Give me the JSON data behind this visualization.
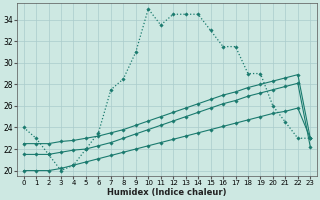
{
  "xlabel": "Humidex (Indice chaleur)",
  "background_color": "#cde8e2",
  "grid_color": "#aacccc",
  "line_color": "#1a7a6e",
  "xlim": [
    -0.5,
    23.5
  ],
  "ylim": [
    19.5,
    35.5
  ],
  "yticks": [
    20,
    22,
    24,
    26,
    28,
    30,
    32,
    34
  ],
  "xticks": [
    0,
    1,
    2,
    3,
    4,
    5,
    6,
    7,
    8,
    9,
    10,
    11,
    12,
    13,
    14,
    15,
    16,
    17,
    18,
    19,
    20,
    21,
    22,
    23
  ],
  "curve1_x": [
    0,
    1,
    2,
    3,
    4,
    5,
    6,
    7,
    8,
    9,
    10,
    11,
    12,
    13,
    14,
    15,
    16,
    17,
    18,
    19,
    20,
    21,
    22,
    23
  ],
  "curve1_y": [
    24,
    23,
    21.5,
    20,
    20.5,
    22,
    23.5,
    27.5,
    28.5,
    31,
    35,
    33.5,
    34.5,
    34.5,
    34.5,
    33,
    31.5,
    31.5,
    29,
    29,
    26,
    24.5,
    23,
    23
  ],
  "curve2_x": [
    0,
    1,
    2,
    3,
    4,
    5,
    6,
    7,
    8,
    9,
    10,
    11,
    12,
    13,
    14,
    15,
    16,
    17,
    18,
    19,
    20,
    21,
    22,
    23
  ],
  "curve2_y": [
    22.5,
    22.5,
    22.5,
    22.7,
    22.8,
    23.0,
    23.2,
    23.5,
    23.8,
    24.2,
    24.6,
    25.0,
    25.4,
    25.8,
    26.2,
    26.6,
    27.0,
    27.3,
    27.7,
    28.0,
    28.3,
    28.6,
    28.9,
    23.0
  ],
  "curve3_x": [
    0,
    1,
    2,
    3,
    4,
    5,
    6,
    7,
    8,
    9,
    10,
    11,
    12,
    13,
    14,
    15,
    16,
    17,
    18,
    19,
    20,
    21,
    22,
    23
  ],
  "curve3_y": [
    21.5,
    21.5,
    21.5,
    21.7,
    21.9,
    22.0,
    22.3,
    22.6,
    23.0,
    23.4,
    23.8,
    24.2,
    24.6,
    25.0,
    25.4,
    25.8,
    26.2,
    26.5,
    26.9,
    27.2,
    27.5,
    27.8,
    28.1,
    22.2
  ],
  "curve4_x": [
    0,
    1,
    2,
    3,
    4,
    5,
    6,
    7,
    8,
    9,
    10,
    11,
    12,
    13,
    14,
    15,
    16,
    17,
    18,
    19,
    20,
    21,
    22,
    23
  ],
  "curve4_y": [
    20.0,
    20.0,
    20.0,
    20.2,
    20.5,
    20.8,
    21.1,
    21.4,
    21.7,
    22.0,
    22.3,
    22.6,
    22.9,
    23.2,
    23.5,
    23.8,
    24.1,
    24.4,
    24.7,
    25.0,
    25.3,
    25.5,
    25.8,
    23.0
  ]
}
